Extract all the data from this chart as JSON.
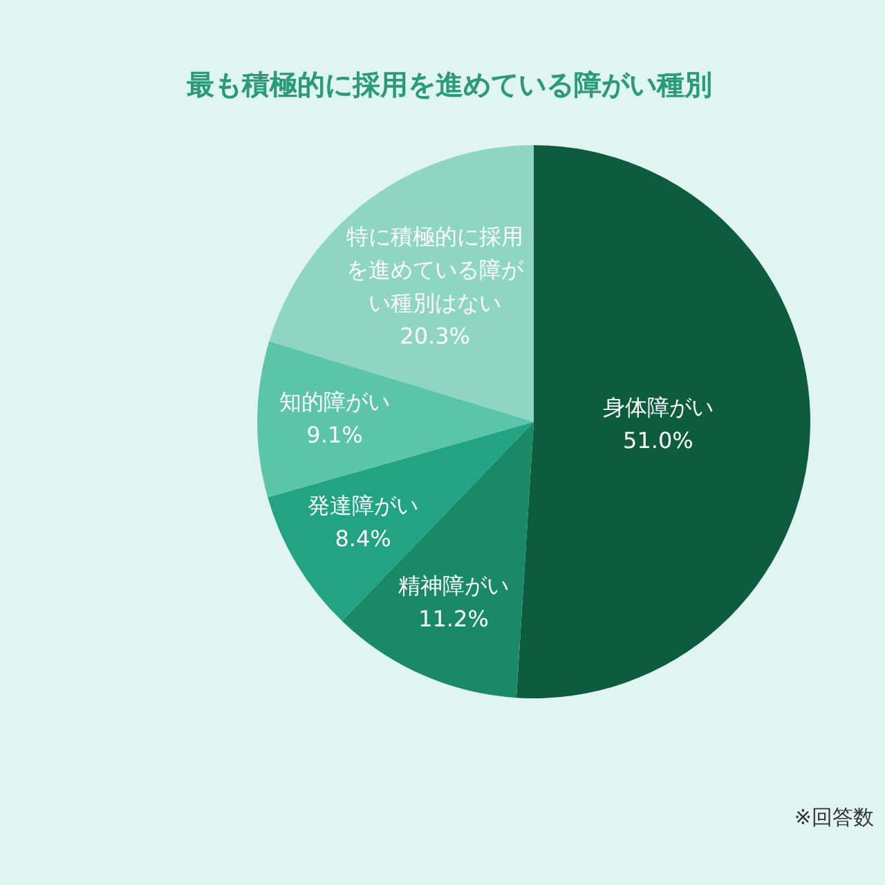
{
  "chart_data": {
    "type": "pie",
    "title": "最も積極的に採用を進めている障がい種別",
    "categories": [
      "身体障がい",
      "精神障がい",
      "発達障がい",
      "知的障がい",
      "特に積極的に採用を進めている障がい種別はない"
    ],
    "values": [
      51.0,
      11.2,
      8.4,
      9.1,
      20.3
    ],
    "value_labels": [
      "51.0%",
      "11.2%",
      "8.4%",
      "9.1%",
      "20.3%"
    ],
    "colors": [
      "#0e5c40",
      "#1a8a66",
      "#22a383",
      "#5cc4a8",
      "#8fd6c2"
    ],
    "legend": false,
    "annotations": [
      "※回答数"
    ]
  }
}
